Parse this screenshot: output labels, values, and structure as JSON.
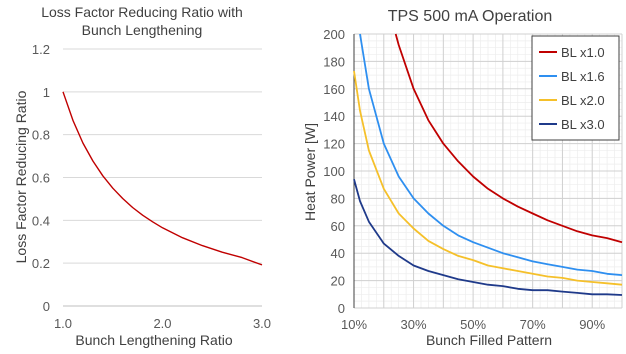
{
  "chart_data": [
    {
      "type": "line",
      "title_lines": [
        "Loss Factor Reducing Ratio with",
        "Bunch Lengthening"
      ],
      "xlabel": "Bunch Lengthening Ratio",
      "ylabel": "Loss Factor Reducing Ratio",
      "xlim": [
        1.0,
        3.0
      ],
      "ylim": [
        0,
        1.2
      ],
      "x_ticks": [
        1.0,
        2.0,
        3.0
      ],
      "x_tick_labels": [
        "1.0",
        "2.0",
        "3.0"
      ],
      "y_ticks": [
        0,
        0.2,
        0.4,
        0.6,
        0.8,
        1,
        1.2
      ],
      "y_tick_labels": [
        "0",
        "0.2",
        "0.4",
        "0.6",
        "0.8",
        "1",
        "1.2"
      ],
      "grid": "horizontal",
      "series": [
        {
          "color": "#c00000",
          "x": [
            1.0,
            1.1,
            1.2,
            1.3,
            1.4,
            1.5,
            1.6,
            1.7,
            1.8,
            1.9,
            2.0,
            2.2,
            2.4,
            2.6,
            2.8,
            3.0
          ],
          "values": [
            1.0,
            0.866,
            0.761,
            0.677,
            0.608,
            0.55,
            0.502,
            0.46,
            0.424,
            0.393,
            0.365,
            0.319,
            0.282,
            0.251,
            0.226,
            0.192
          ]
        }
      ]
    },
    {
      "type": "line",
      "title": "TPS 500 mA Operation",
      "xlabel": "Bunch Filled Pattern",
      "ylabel": "Heat Power [W]",
      "xlim": [
        10,
        100
      ],
      "ylim": [
        0,
        200
      ],
      "x_ticks": [
        10,
        30,
        50,
        70,
        90
      ],
      "x_tick_labels": [
        "10%",
        "30%",
        "50%",
        "70%",
        "90%"
      ],
      "y_ticks": [
        0,
        20,
        40,
        60,
        80,
        100,
        120,
        140,
        160,
        180,
        200
      ],
      "y_tick_labels": [
        "0",
        "20",
        "40",
        "60",
        "80",
        "100",
        "120",
        "140",
        "160",
        "180",
        "200"
      ],
      "grid": "major-and-minor",
      "legend": "top-right",
      "series": [
        {
          "name": "BL x1.0",
          "color": "#c00000",
          "x": [
            24,
            25,
            30,
            35,
            40,
            45,
            50,
            55,
            60,
            65,
            70,
            75,
            80,
            85,
            90,
            95,
            100
          ],
          "values": [
            200,
            192,
            160,
            137,
            120,
            107,
            96,
            87,
            80,
            74,
            69,
            64,
            60,
            56,
            53,
            51,
            48
          ]
        },
        {
          "name": "BL x1.6",
          "color": "#2e8ff0",
          "x": [
            12,
            15,
            20,
            25,
            30,
            35,
            40,
            45,
            50,
            55,
            60,
            65,
            70,
            75,
            80,
            85,
            90,
            95,
            100
          ],
          "values": [
            200,
            160,
            120,
            96,
            80,
            69,
            60,
            53,
            48,
            44,
            40,
            37,
            34,
            32,
            30,
            28,
            27,
            25,
            24
          ]
        },
        {
          "name": "BL x2.0",
          "color": "#f5c02a",
          "x": [
            10,
            12,
            15,
            20,
            25,
            30,
            35,
            40,
            45,
            50,
            55,
            60,
            65,
            70,
            75,
            80,
            85,
            90,
            95,
            100
          ],
          "values": [
            173,
            144,
            115,
            87,
            69,
            58,
            49,
            43,
            38,
            35,
            31,
            29,
            27,
            25,
            23,
            22,
            20,
            19,
            18,
            17
          ]
        },
        {
          "name": "BL x3.0",
          "color": "#1f3a8a",
          "x": [
            10,
            12,
            15,
            20,
            25,
            30,
            35,
            40,
            45,
            50,
            55,
            60,
            65,
            70,
            75,
            80,
            85,
            90,
            95,
            100
          ],
          "values": [
            94,
            78,
            63,
            47,
            38,
            31,
            27,
            24,
            21,
            19,
            17,
            16,
            14,
            13,
            13,
            12,
            11,
            10,
            10,
            9.5
          ]
        }
      ]
    }
  ]
}
